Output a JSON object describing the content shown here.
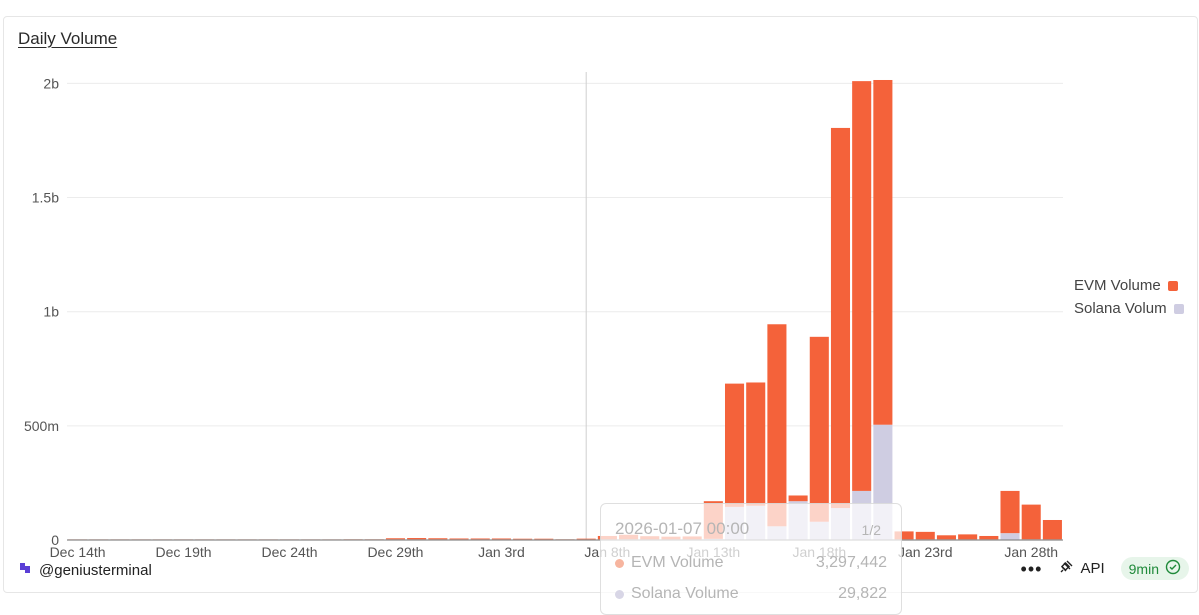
{
  "header": {
    "title": "Daily Volume"
  },
  "colors": {
    "evm": "#f4623a",
    "solana": "#cfcde2",
    "grid": "#ececec",
    "axis": "#555555"
  },
  "chart_data": {
    "type": "bar",
    "stacked": true,
    "title": "Daily Volume",
    "xlabel": "",
    "ylabel": "",
    "ylim": [
      0,
      2050000000
    ],
    "yticks": [
      0,
      500000000,
      1000000000,
      1500000000,
      2000000000
    ],
    "ytick_labels": [
      "0",
      "500m",
      "1b",
      "1.5b",
      "2b"
    ],
    "x_tick_labels": [
      {
        "index": 0,
        "label": "Dec 14th"
      },
      {
        "index": 5,
        "label": "Dec 19th"
      },
      {
        "index": 10,
        "label": "Dec 24th"
      },
      {
        "index": 15,
        "label": "Dec 29th"
      },
      {
        "index": 20,
        "label": "Jan 3rd"
      },
      {
        "index": 25,
        "label": "Jan 8th"
      },
      {
        "index": 30,
        "label": "Jan 13th"
      },
      {
        "index": 35,
        "label": "Jan 18th"
      },
      {
        "index": 40,
        "label": "Jan 23rd"
      },
      {
        "index": 45,
        "label": "Jan 28th"
      }
    ],
    "categories": [
      "Dec 14",
      "Dec 15",
      "Dec 16",
      "Dec 17",
      "Dec 18",
      "Dec 19",
      "Dec 20",
      "Dec 21",
      "Dec 22",
      "Dec 23",
      "Dec 24",
      "Dec 25",
      "Dec 26",
      "Dec 27",
      "Dec 28",
      "Dec 29",
      "Dec 30",
      "Dec 31",
      "Jan 1",
      "Jan 2",
      "Jan 3",
      "Jan 4",
      "Jan 5",
      "Jan 6",
      "Jan 7",
      "Jan 8",
      "Jan 9",
      "Jan 10",
      "Jan 11",
      "Jan 12",
      "Jan 13",
      "Jan 14",
      "Jan 15",
      "Jan 16",
      "Jan 17",
      "Jan 18",
      "Jan 19",
      "Jan 20",
      "Jan 21",
      "Jan 22",
      "Jan 23",
      "Jan 24",
      "Jan 25",
      "Jan 26",
      "Jan 27",
      "Jan 28",
      "Jan 29"
    ],
    "series": [
      {
        "name": "Solana Volume",
        "values": [
          0,
          0,
          0,
          0,
          0,
          0,
          0,
          0,
          0,
          0,
          0,
          0,
          0,
          0,
          0,
          500000,
          500000,
          500000,
          500000,
          500000,
          500000,
          500000,
          500000,
          0,
          29822,
          1000000,
          3000000,
          2000000,
          1000000,
          2000000,
          5000000,
          145000000,
          150000000,
          60000000,
          170000000,
          80000000,
          140000000,
          215000000,
          505000000,
          2000000,
          2000000,
          1000000,
          1000000,
          2000000,
          30000000,
          3000000,
          2000000
        ]
      },
      {
        "name": "EVM Volume",
        "values": [
          1000000,
          1000000,
          1000000,
          1000000,
          1000000,
          1000000,
          1000000,
          1000000,
          1000000,
          1000000,
          1000000,
          2000000,
          2000000,
          3000000,
          3000000,
          5000000,
          6000000,
          5000000,
          4000000,
          4000000,
          4000000,
          3000000,
          3000000,
          3000000,
          3297442,
          15000000,
          20000000,
          14000000,
          12000000,
          13000000,
          165000000,
          540000000,
          540000000,
          885000000,
          25000000,
          810000000,
          1665000000,
          1795000000,
          1510000000,
          35000000,
          33000000,
          18000000,
          22000000,
          15000000,
          185000000,
          152000000,
          85000000
        ]
      }
    ],
    "legend": [
      "EVM Volume",
      "Solana Volum"
    ],
    "legend_position": "right",
    "grid": true,
    "crosshair_index": 24
  },
  "tooltip": {
    "date": "2026-01-07 00:00",
    "page": "1/2",
    "rows": [
      {
        "label": "EVM Volume",
        "value": "3,297,442"
      },
      {
        "label": "Solana Volume",
        "value": "29,822"
      }
    ]
  },
  "footer": {
    "handle": "@geniusterminal",
    "more": "•••",
    "api_label": "API",
    "freshness": "9min"
  }
}
